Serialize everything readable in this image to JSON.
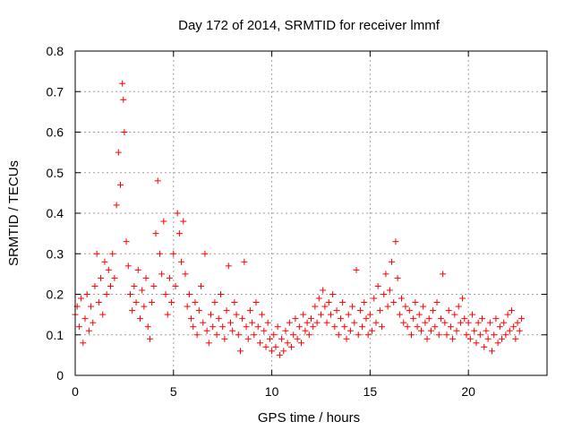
{
  "chart_data": {
    "type": "scatter",
    "title": "Day 172 of 2014, SRMTID for receiver lmmf",
    "xlabel": "GPS time / hours",
    "ylabel": "SRMTID / TECUs",
    "xlim": [
      0,
      24.0
    ],
    "ylim": [
      0,
      0.8
    ],
    "xticks": [
      0,
      5,
      10,
      15,
      20
    ],
    "xtick_labels": [
      "0",
      "5",
      "10",
      "15",
      "20"
    ],
    "yticks": [
      0,
      0.1,
      0.2,
      0.3,
      0.4,
      0.5,
      0.6,
      0.7,
      0.8
    ],
    "ytick_labels": [
      "0",
      "0.1",
      "0.2",
      "0.3",
      "0.4",
      "0.5",
      "0.6",
      "0.7",
      "0.8"
    ],
    "grid": true,
    "marker": "+",
    "series": [
      {
        "name": "SRMTID",
        "color": "#ff0000",
        "points": [
          [
            0.0,
            0.15
          ],
          [
            0.1,
            0.17
          ],
          [
            0.2,
            0.12
          ],
          [
            0.3,
            0.19
          ],
          [
            0.4,
            0.08
          ],
          [
            0.5,
            0.14
          ],
          [
            0.6,
            0.2
          ],
          [
            0.7,
            0.11
          ],
          [
            0.8,
            0.17
          ],
          [
            0.9,
            0.13
          ],
          [
            1.0,
            0.22
          ],
          [
            1.1,
            0.3
          ],
          [
            1.2,
            0.18
          ],
          [
            1.3,
            0.24
          ],
          [
            1.4,
            0.15
          ],
          [
            1.5,
            0.28
          ],
          [
            1.6,
            0.2
          ],
          [
            1.7,
            0.26
          ],
          [
            1.8,
            0.22
          ],
          [
            1.9,
            0.3
          ],
          [
            2.0,
            0.24
          ],
          [
            2.1,
            0.42
          ],
          [
            2.2,
            0.55
          ],
          [
            2.3,
            0.47
          ],
          [
            2.4,
            0.72
          ],
          [
            2.45,
            0.68
          ],
          [
            2.5,
            0.6
          ],
          [
            2.6,
            0.33
          ],
          [
            2.7,
            0.27
          ],
          [
            2.8,
            0.2
          ],
          [
            2.9,
            0.16
          ],
          [
            3.0,
            0.22
          ],
          [
            3.1,
            0.18
          ],
          [
            3.2,
            0.26
          ],
          [
            3.3,
            0.14
          ],
          [
            3.4,
            0.21
          ],
          [
            3.5,
            0.17
          ],
          [
            3.6,
            0.24
          ],
          [
            3.7,
            0.12
          ],
          [
            3.8,
            0.09
          ],
          [
            3.9,
            0.18
          ],
          [
            4.0,
            0.22
          ],
          [
            4.1,
            0.35
          ],
          [
            4.2,
            0.48
          ],
          [
            4.3,
            0.3
          ],
          [
            4.4,
            0.25
          ],
          [
            4.5,
            0.38
          ],
          [
            4.6,
            0.2
          ],
          [
            4.7,
            0.15
          ],
          [
            4.8,
            0.24
          ],
          [
            4.9,
            0.18
          ],
          [
            5.0,
            0.3
          ],
          [
            5.1,
            0.22
          ],
          [
            5.2,
            0.4
          ],
          [
            5.3,
            0.35
          ],
          [
            5.4,
            0.28
          ],
          [
            5.5,
            0.38
          ],
          [
            5.6,
            0.25
          ],
          [
            5.7,
            0.17
          ],
          [
            5.8,
            0.2
          ],
          [
            5.9,
            0.14
          ],
          [
            6.0,
            0.12
          ],
          [
            6.1,
            0.18
          ],
          [
            6.2,
            0.1
          ],
          [
            6.3,
            0.16
          ],
          [
            6.4,
            0.22
          ],
          [
            6.5,
            0.13
          ],
          [
            6.6,
            0.3
          ],
          [
            6.7,
            0.11
          ],
          [
            6.8,
            0.08
          ],
          [
            6.9,
            0.15
          ],
          [
            7.0,
            0.12
          ],
          [
            7.1,
            0.18
          ],
          [
            7.2,
            0.1
          ],
          [
            7.3,
            0.14
          ],
          [
            7.4,
            0.2
          ],
          [
            7.5,
            0.12
          ],
          [
            7.6,
            0.09
          ],
          [
            7.7,
            0.16
          ],
          [
            7.8,
            0.27
          ],
          [
            7.9,
            0.13
          ],
          [
            8.0,
            0.11
          ],
          [
            8.1,
            0.18
          ],
          [
            8.2,
            0.15
          ],
          [
            8.3,
            0.1
          ],
          [
            8.4,
            0.06
          ],
          [
            8.5,
            0.14
          ],
          [
            8.6,
            0.28
          ],
          [
            8.7,
            0.12
          ],
          [
            8.8,
            0.09
          ],
          [
            8.9,
            0.16
          ],
          [
            9.0,
            0.13
          ],
          [
            9.1,
            0.1
          ],
          [
            9.2,
            0.18
          ],
          [
            9.3,
            0.12
          ],
          [
            9.4,
            0.08
          ],
          [
            9.5,
            0.15
          ],
          [
            9.6,
            0.11
          ],
          [
            9.7,
            0.07
          ],
          [
            9.8,
            0.13
          ],
          [
            9.9,
            0.09
          ],
          [
            10.0,
            0.06
          ],
          [
            10.1,
            0.1
          ],
          [
            10.2,
            0.07
          ],
          [
            10.3,
            0.12
          ],
          [
            10.4,
            0.05
          ],
          [
            10.5,
            0.09
          ],
          [
            10.6,
            0.06
          ],
          [
            10.7,
            0.11
          ],
          [
            10.8,
            0.08
          ],
          [
            10.9,
            0.13
          ],
          [
            11.0,
            0.07
          ],
          [
            11.1,
            0.1
          ],
          [
            11.2,
            0.14
          ],
          [
            11.3,
            0.09
          ],
          [
            11.4,
            0.12
          ],
          [
            11.5,
            0.08
          ],
          [
            11.6,
            0.15
          ],
          [
            11.7,
            0.11
          ],
          [
            11.8,
            0.13
          ],
          [
            11.9,
            0.1
          ],
          [
            12.0,
            0.14
          ],
          [
            12.1,
            0.12
          ],
          [
            12.2,
            0.17
          ],
          [
            12.3,
            0.13
          ],
          [
            12.4,
            0.19
          ],
          [
            12.5,
            0.15
          ],
          [
            12.6,
            0.21
          ],
          [
            12.7,
            0.17
          ],
          [
            12.8,
            0.13
          ],
          [
            12.9,
            0.18
          ],
          [
            13.0,
            0.15
          ],
          [
            13.1,
            0.2
          ],
          [
            13.2,
            0.12
          ],
          [
            13.3,
            0.16
          ],
          [
            13.4,
            0.1
          ],
          [
            13.5,
            0.14
          ],
          [
            13.6,
            0.18
          ],
          [
            13.7,
            0.12
          ],
          [
            13.8,
            0.09
          ],
          [
            13.9,
            0.15
          ],
          [
            14.0,
            0.11
          ],
          [
            14.1,
            0.17
          ],
          [
            14.2,
            0.13
          ],
          [
            14.3,
            0.26
          ],
          [
            14.4,
            0.1
          ],
          [
            14.5,
            0.16
          ],
          [
            14.6,
            0.12
          ],
          [
            14.7,
            0.18
          ],
          [
            14.8,
            0.14
          ],
          [
            14.9,
            0.1
          ],
          [
            15.0,
            0.15
          ],
          [
            15.1,
            0.11
          ],
          [
            15.2,
            0.19
          ],
          [
            15.3,
            0.13
          ],
          [
            15.4,
            0.22
          ],
          [
            15.5,
            0.16
          ],
          [
            15.6,
            0.12
          ],
          [
            15.7,
            0.2
          ],
          [
            15.8,
            0.25
          ],
          [
            15.9,
            0.17
          ],
          [
            16.0,
            0.21
          ],
          [
            16.1,
            0.28
          ],
          [
            16.2,
            0.18
          ],
          [
            16.3,
            0.33
          ],
          [
            16.4,
            0.24
          ],
          [
            16.5,
            0.15
          ],
          [
            16.6,
            0.19
          ],
          [
            16.7,
            0.13
          ],
          [
            16.8,
            0.17
          ],
          [
            16.9,
            0.12
          ],
          [
            17.0,
            0.16
          ],
          [
            17.1,
            0.1
          ],
          [
            17.2,
            0.14
          ],
          [
            17.3,
            0.18
          ],
          [
            17.4,
            0.12
          ],
          [
            17.5,
            0.15
          ],
          [
            17.6,
            0.11
          ],
          [
            17.7,
            0.17
          ],
          [
            17.8,
            0.13
          ],
          [
            17.9,
            0.09
          ],
          [
            18.0,
            0.14
          ],
          [
            18.1,
            0.11
          ],
          [
            18.2,
            0.16
          ],
          [
            18.3,
            0.12
          ],
          [
            18.4,
            0.18
          ],
          [
            18.5,
            0.1
          ],
          [
            18.6,
            0.14
          ],
          [
            18.7,
            0.25
          ],
          [
            18.8,
            0.13
          ],
          [
            18.9,
            0.1
          ],
          [
            19.0,
            0.16
          ],
          [
            19.1,
            0.12
          ],
          [
            19.2,
            0.09
          ],
          [
            19.3,
            0.15
          ],
          [
            19.4,
            0.11
          ],
          [
            19.5,
            0.17
          ],
          [
            19.6,
            0.13
          ],
          [
            19.7,
            0.19
          ],
          [
            19.8,
            0.14
          ],
          [
            19.9,
            0.1
          ],
          [
            20.0,
            0.13
          ],
          [
            20.1,
            0.09
          ],
          [
            20.2,
            0.15
          ],
          [
            20.3,
            0.11
          ],
          [
            20.4,
            0.08
          ],
          [
            20.5,
            0.13
          ],
          [
            20.6,
            0.1
          ],
          [
            20.7,
            0.14
          ],
          [
            20.8,
            0.07
          ],
          [
            20.9,
            0.11
          ],
          [
            21.0,
            0.09
          ],
          [
            21.1,
            0.13
          ],
          [
            21.2,
            0.06
          ],
          [
            21.3,
            0.1
          ],
          [
            21.4,
            0.14
          ],
          [
            21.5,
            0.08
          ],
          [
            21.6,
            0.12
          ],
          [
            21.7,
            0.09
          ],
          [
            21.8,
            0.13
          ],
          [
            21.9,
            0.1
          ],
          [
            22.0,
            0.15
          ],
          [
            22.1,
            0.11
          ],
          [
            22.2,
            0.16
          ],
          [
            22.3,
            0.12
          ],
          [
            22.4,
            0.09
          ],
          [
            22.5,
            0.13
          ],
          [
            22.6,
            0.11
          ],
          [
            22.7,
            0.14
          ]
        ]
      }
    ]
  }
}
